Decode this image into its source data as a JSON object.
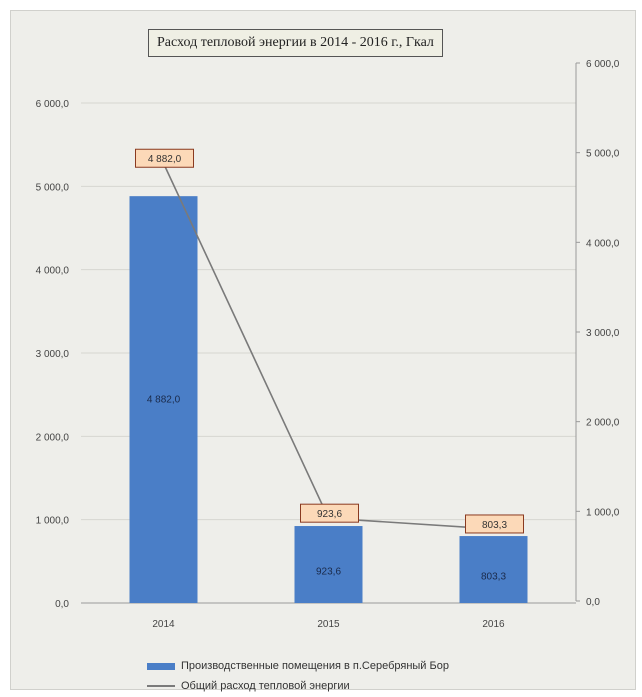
{
  "chart_data": {
    "type": "bar",
    "title": "Расход тепловой энергии в 2014 - 2016 г., Гкал",
    "categories": [
      "2014",
      "2015",
      "2016"
    ],
    "series": [
      {
        "name": "Производственные помещения в п.Серебряный Бор",
        "type": "bar",
        "axis": "left",
        "values": [
          4882.0,
          923.6,
          803.3
        ],
        "labels": [
          "4 882,0",
          "923,6",
          "803,3"
        ],
        "color": "#4a7ec7"
      },
      {
        "name": "Общий расход тепловой энергии",
        "type": "line",
        "axis": "right",
        "values": [
          4882.0,
          923.6,
          803.3
        ],
        "labels": [
          "4 882,0",
          "923,6",
          "803,3"
        ],
        "color": "#7a7a7a"
      }
    ],
    "ylim_left": [
      0,
      6000
    ],
    "ylim_right": [
      0,
      6000
    ],
    "yticks_left": [
      "0,0",
      "1 000,0",
      "2 000,0",
      "3 000,0",
      "4 000,0",
      "5 000,0",
      "6 000,0"
    ],
    "yticks_right": [
      "0,0",
      "1 000,0",
      "2 000,0",
      "3 000,0",
      "4 000,0",
      "5 000,0",
      "6 000,0"
    ],
    "grid": true,
    "legend_position": "bottom",
    "label_box_color": "#fcd9b8"
  }
}
